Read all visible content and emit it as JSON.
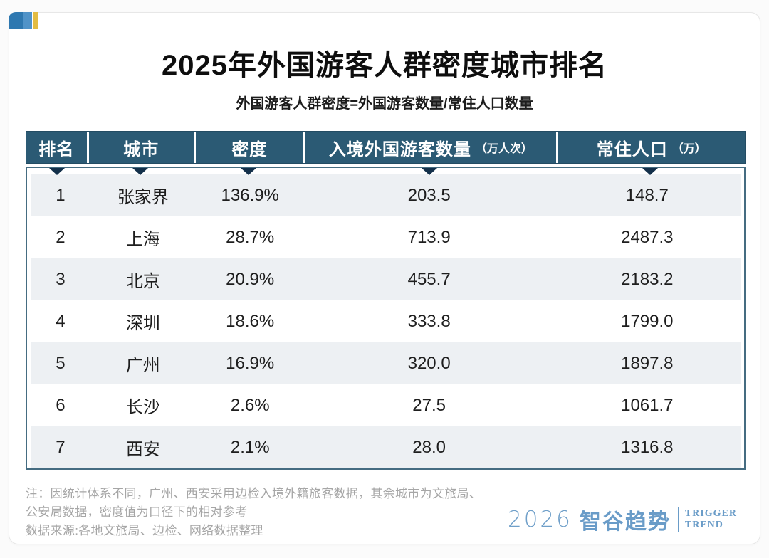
{
  "header": {
    "title": "2025年外国游客人群密度城市排名",
    "subtitle": "外国游客人群密度=外国游客数量/常住人口数量"
  },
  "chart_data": {
    "type": "table",
    "title": "2025年外国游客人群密度城市排名",
    "columns": [
      {
        "label": "排名",
        "unit": ""
      },
      {
        "label": "城市",
        "unit": ""
      },
      {
        "label": "密度",
        "unit": ""
      },
      {
        "label": "入境外国游客数量",
        "unit": "（万人次）"
      },
      {
        "label": "常住人口",
        "unit": "（万）"
      }
    ],
    "rows": [
      [
        "1",
        "张家界",
        "136.9%",
        "203.5",
        "148.7"
      ],
      [
        "2",
        "上海",
        "28.7%",
        "713.9",
        "2487.3"
      ],
      [
        "3",
        "北京",
        "20.9%",
        "455.7",
        "2183.2"
      ],
      [
        "4",
        "深圳",
        "18.6%",
        "333.8",
        "1799.0"
      ],
      [
        "5",
        "广州",
        "16.9%",
        "320.0",
        "1897.8"
      ],
      [
        "6",
        "长沙",
        "2.6%",
        "27.5",
        "1061.7"
      ],
      [
        "7",
        "西安",
        "2.1%",
        "28.0",
        "1316.8"
      ]
    ]
  },
  "notes": {
    "lines": [
      "注：因统计体系不同，广州、西安采用边检入境外籍旅客数据，其余城市为文旅局、",
      "公安局数据，密度值为口径下的相对参考",
      "数据来源:各地文旅局、边检、网络数据整理"
    ]
  },
  "footer": {
    "year": "2026",
    "brand_cn": "智谷趋势",
    "brand_en_line1": "TRIGGER",
    "brand_en_line2": "TREND"
  },
  "colors": {
    "header_bg": "#2b5a74",
    "triangle": "#13304a",
    "alt_row": "#edf0f3",
    "brand_blue": "#6a9cc8",
    "mark_dark_blue": "#2e78b0",
    "mark_light_blue": "#5093c8",
    "mark_gold": "#e3bc42"
  }
}
